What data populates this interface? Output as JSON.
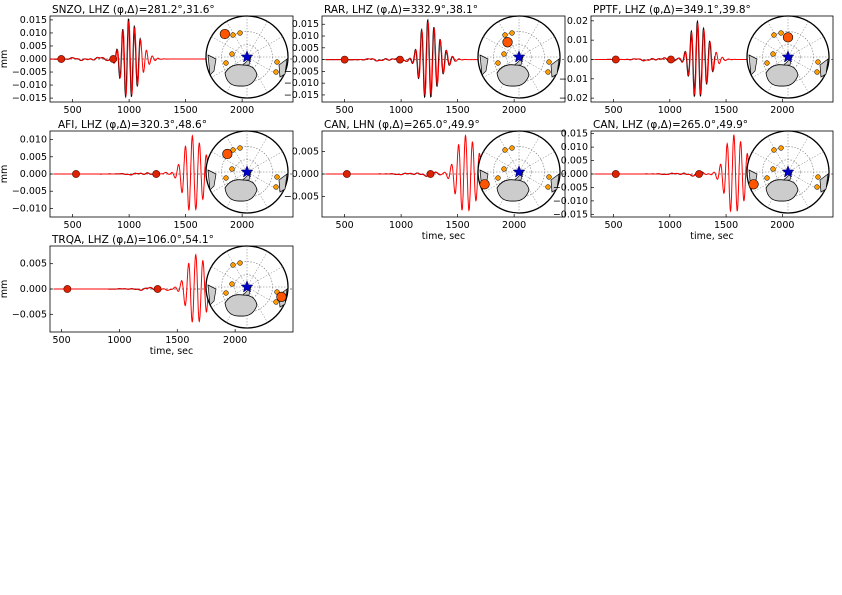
{
  "figure": {
    "ylabel": "mm",
    "xlabel": "time, sec"
  },
  "colors": {
    "observed": "#000000",
    "synthetic": "#ff0000",
    "marker": "#dd2200",
    "station_dot": "#ff5500",
    "small_event": "#ff9900",
    "epicenter_star": "#0000cc",
    "land": "#cccccc",
    "axes": "#000000",
    "gridline": "#777777"
  },
  "map_icons": [
    "polar-map-icon",
    "epicenter-star-icon",
    "antarctica-icon",
    "south-america-icon",
    "australia-icon"
  ],
  "chart_data": [
    {
      "type": "line",
      "title": "SNZO, LHZ (φ,Δ)=281.2°,31.6°",
      "station": "SNZO",
      "channel": "LHZ",
      "azimuth": 281.2,
      "distance": 31.6,
      "xlabel": "",
      "ylabel": "mm",
      "xlim": [
        300,
        2450
      ],
      "ylim": [
        -0.0165,
        0.0165
      ],
      "xticks": [
        500,
        1000,
        1500,
        2000
      ],
      "xtick_labels": [
        "500",
        "1000",
        "1500",
        "2000"
      ],
      "yticks": [
        0.015,
        0.01,
        0.005,
        0.0,
        -0.005,
        -0.01,
        -0.015
      ],
      "ytick_labels": [
        "0.015",
        "0.010",
        "0.005",
        "0.000",
        "−0.005",
        "−0.010",
        "−0.015"
      ],
      "markers_time": [
        400,
        860
      ],
      "wave": {
        "t0": 990,
        "period": 52,
        "amp": 0.0145,
        "width": 80,
        "start": 300,
        "end": 1900,
        "obs_end": 1100
      },
      "station_pos": [
        0.23,
        0.22
      ]
    },
    {
      "type": "line",
      "title": "RAR, LHZ (φ,Δ)=332.9°,38.1°",
      "station": "RAR",
      "channel": "LHZ",
      "azimuth": 332.9,
      "distance": 38.1,
      "xlabel": "",
      "ylabel": "",
      "xlim": [
        300,
        2450
      ],
      "ylim": [
        -0.018,
        0.0185
      ],
      "xticks": [
        500,
        1000,
        1500,
        2000
      ],
      "xtick_labels": [
        "500",
        "1000",
        "1500",
        "2000"
      ],
      "yticks": [
        0.015,
        0.01,
        0.005,
        0.0,
        -0.005,
        -0.01,
        -0.015
      ],
      "ytick_labels": [
        "0.015",
        "0.010",
        "0.005",
        "0.000",
        "−0.005",
        "−0.010",
        "−0.015"
      ],
      "markers_time": [
        500,
        990
      ],
      "wave": {
        "t0": 1230,
        "period": 55,
        "amp": 0.016,
        "width": 85,
        "start": 330,
        "end": 1800,
        "obs_end": 1480
      },
      "station_pos": [
        0.36,
        0.32
      ]
    },
    {
      "type": "line",
      "title": "PPTF, LHZ (φ,Δ)=349.1°,39.8°",
      "station": "PPTF",
      "channel": "LHZ",
      "azimuth": 349.1,
      "distance": 39.8,
      "xlabel": "",
      "ylabel": "",
      "xlim": [
        300,
        2450
      ],
      "ylim": [
        -0.022,
        0.0225
      ],
      "xticks": [
        500,
        1000,
        1500,
        2000
      ],
      "xtick_labels": [
        "500",
        "1000",
        "1500",
        "2000"
      ],
      "yticks": [
        0.02,
        0.01,
        0.0,
        -0.01,
        -0.02
      ],
      "ytick_labels": [
        "0.02",
        "0.01",
        "0.00",
        "−0.01",
        "−0.02"
      ],
      "markers_time": [
        520,
        1010
      ],
      "wave": {
        "t0": 1240,
        "period": 55,
        "amp": 0.019,
        "width": 80,
        "start": 330,
        "end": 1770,
        "obs_end": 1400
      },
      "station_pos": [
        0.5,
        0.26
      ]
    },
    {
      "type": "line",
      "title": "AFI, LHZ (φ,Δ)=320.3°,48.6°",
      "station": "AFI",
      "channel": "LHZ",
      "azimuth": 320.3,
      "distance": 48.6,
      "xlabel": "",
      "ylabel": "mm",
      "xlim": [
        300,
        2450
      ],
      "ylim": [
        -0.0125,
        0.0125
      ],
      "xticks": [
        500,
        1000,
        1500,
        2000
      ],
      "xtick_labels": [
        "500",
        "1000",
        "1500",
        "2000"
      ],
      "yticks": [
        0.01,
        0.005,
        0.0,
        -0.005,
        -0.01
      ],
      "ytick_labels": [
        "0.010",
        "0.005",
        "0.000",
        "−0.005",
        "−0.010"
      ],
      "markers_time": [
        530,
        1240
      ],
      "wave": {
        "t0": 1550,
        "period": 62,
        "amp": 0.011,
        "width": 95,
        "start": 330,
        "end": 1870,
        "obs_end": 1270
      },
      "station_pos": [
        0.26,
        0.28
      ]
    },
    {
      "type": "line",
      "title": "CAN, LHN (φ,Δ)=265.0°,49.9°",
      "station": "CAN",
      "channel": "LHN",
      "azimuth": 265.0,
      "distance": 49.9,
      "xlabel": "time, sec",
      "ylabel": "",
      "xlim": [
        300,
        2450
      ],
      "ylim": [
        -0.0095,
        0.0095
      ],
      "xticks": [
        500,
        1000,
        1500,
        2000
      ],
      "xtick_labels": [
        "500",
        "1000",
        "1500",
        "2000"
      ],
      "yticks": [
        0.005,
        0.0,
        -0.005
      ],
      "ytick_labels": [
        "0.005",
        "0.000",
        "−0.005"
      ],
      "markers_time": [
        520,
        1260
      ],
      "wave": {
        "t0": 1560,
        "period": 62,
        "amp": 0.0085,
        "width": 100,
        "start": 330,
        "end": 1930,
        "obs_end": 1350
      },
      "station_pos": [
        0.08,
        0.65
      ]
    },
    {
      "type": "line",
      "title": "CAN, LHZ (φ,Δ)=265.0°,49.9°",
      "station": "CAN",
      "channel": "LHZ",
      "azimuth": 265.0,
      "distance": 49.9,
      "xlabel": "time, sec",
      "ylabel": "",
      "xlim": [
        300,
        2450
      ],
      "ylim": [
        -0.016,
        0.016
      ],
      "xticks": [
        500,
        1000,
        1500,
        2000
      ],
      "xtick_labels": [
        "500",
        "1000",
        "1500",
        "2000"
      ],
      "yticks": [
        0.015,
        0.01,
        0.005,
        0.0,
        -0.005,
        -0.01,
        -0.015
      ],
      "ytick_labels": [
        "0.015",
        "0.010",
        "0.005",
        "0.000",
        "−0.005",
        "−0.010",
        "−0.015"
      ],
      "markers_time": [
        520,
        1260
      ],
      "wave": {
        "t0": 1560,
        "period": 60,
        "amp": 0.0145,
        "width": 95,
        "start": 330,
        "end": 1900,
        "obs_end": 1300
      },
      "station_pos": [
        0.08,
        0.65
      ]
    },
    {
      "type": "line",
      "title": "TRQA, LHZ (φ,Δ)=106.0°,54.1°",
      "station": "TRQA",
      "channel": "LHZ",
      "azimuth": 106.0,
      "distance": 54.1,
      "xlabel": "time, sec",
      "ylabel": "mm",
      "xlim": [
        400,
        2500
      ],
      "ylim": [
        -0.0085,
        0.0085
      ],
      "xticks": [
        500,
        1000,
        1500,
        2000
      ],
      "xtick_labels": [
        "500",
        "1000",
        "1500",
        "2000"
      ],
      "yticks": [
        0.005,
        0.0,
        -0.005
      ],
      "ytick_labels": [
        "0.005",
        "0.000",
        "−0.005"
      ],
      "markers_time": [
        550,
        1330
      ],
      "wave": {
        "t0": 1650,
        "period": 62,
        "amp": 0.0068,
        "width": 95,
        "start": 430,
        "end": 1970,
        "obs_end": 1340
      },
      "station_pos": [
        0.92,
        0.62
      ]
    }
  ]
}
